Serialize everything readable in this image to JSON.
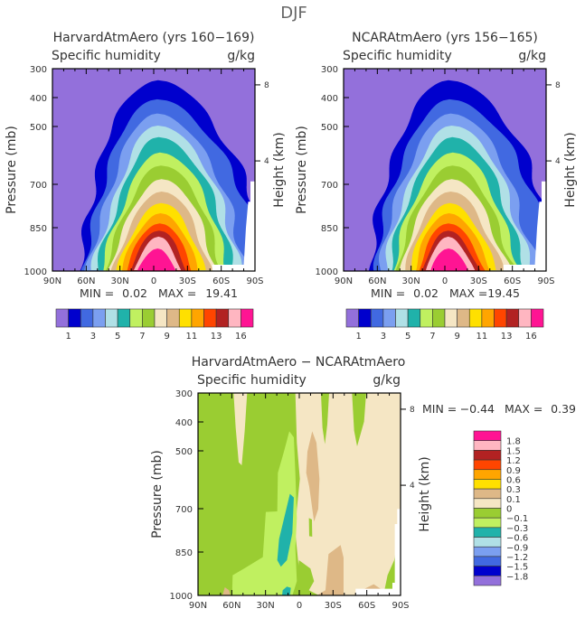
{
  "title": "DJF",
  "colors": [
    "#9370DB",
    "#0000CD",
    "#4169E1",
    "#7B9FF0",
    "#B0E0E6",
    "#20B2AA",
    "#C0F060",
    "#9ACD32",
    "#F5E6C4",
    "#DEB887",
    "#FFE000",
    "#FFA500",
    "#FF4500",
    "#B22222",
    "#FFB6C1",
    "#FF1493"
  ],
  "missing_color": "#FFFFFF",
  "chart_data": [
    {
      "type": "contour",
      "title": "HarvardAtmAero (yrs 160−169)",
      "subtitle": "Specific humidity",
      "units": "g/kg",
      "ylabel": "Pressure (mb)",
      "y2label": "Height (km)",
      "xticks": [
        "90N",
        "60N",
        "30N",
        "0",
        "30S",
        "60S",
        "90S"
      ],
      "yticks": [
        "300",
        "400",
        "500",
        "700",
        "850",
        "1000"
      ],
      "y2ticks": [
        "8",
        "4"
      ],
      "ylim": [
        1000,
        300
      ],
      "min_label": "MIN =",
      "min": "0.02",
      "max_label": "MAX =",
      "max": "19.41",
      "colorbar": {
        "orientation": "horizontal",
        "labels": [
          "1",
          "3",
          "5",
          "7",
          "9",
          "11",
          "13",
          "16"
        ]
      }
    },
    {
      "type": "contour",
      "title": "NCARAtmAero (yrs 156−165)",
      "subtitle": "Specific humidity",
      "units": "g/kg",
      "ylabel": "Pressure (mb)",
      "y2label": "Height (km)",
      "xticks": [
        "90N",
        "60N",
        "30N",
        "0",
        "30S",
        "60S",
        "90S"
      ],
      "yticks": [
        "300",
        "400",
        "500",
        "700",
        "850",
        "1000"
      ],
      "y2ticks": [
        "8",
        "4"
      ],
      "ylim": [
        1000,
        300
      ],
      "min_label": "MIN =",
      "min": "0.02",
      "max_label": "MAX =",
      "max": "19.45",
      "colorbar": {
        "orientation": "horizontal",
        "labels": [
          "1",
          "3",
          "5",
          "7",
          "9",
          "11",
          "13",
          "16"
        ]
      }
    },
    {
      "type": "contour",
      "title": "HarvardAtmAero − NCARAtmAero",
      "subtitle": "Specific humidity",
      "units": "g/kg",
      "ylabel": "Pressure (mb)",
      "y2label": "Height (km)",
      "xticks": [
        "90N",
        "60N",
        "30N",
        "0",
        "30S",
        "60S",
        "90S"
      ],
      "yticks": [
        "300",
        "400",
        "500",
        "700",
        "850",
        "1000"
      ],
      "y2ticks": [
        "8",
        "4"
      ],
      "ylim": [
        1000,
        300
      ],
      "min_label": "MIN =",
      "min": "−0.44",
      "max_label": "MAX =",
      "max": "0.39",
      "colorbar": {
        "orientation": "vertical",
        "labels": [
          "1.8",
          "1.5",
          "1.2",
          "0.9",
          "0.6",
          "0.3",
          "0.1",
          "0",
          "−0.1",
          "−0.3",
          "−0.6",
          "−0.9",
          "−1.2",
          "−1.5",
          "−1.8"
        ]
      }
    }
  ]
}
